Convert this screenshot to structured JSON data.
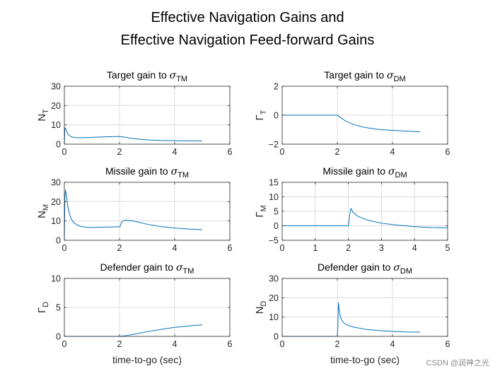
{
  "figure": {
    "title_line1": "Effective Navigation Gains and",
    "title_line2": "Effective Navigation Feed-forward Gains",
    "watermark": "CSDN @润神之光",
    "line_color": "#0072BD",
    "grid_color": "#dcdcdc"
  },
  "chart_data": [
    {
      "type": "line",
      "title_main": "Target gain to ",
      "title_sym": "σ",
      "title_sub": "TM",
      "ylabel_main": "N",
      "ylabel_sub": "T",
      "xlabel": "",
      "xlim": [
        0,
        6
      ],
      "ylim": [
        0,
        30
      ],
      "xticks": [
        0,
        2,
        4,
        6
      ],
      "yticks": [
        0,
        10,
        20,
        30
      ],
      "series": [
        {
          "name": "N_T",
          "x": [
            0.0,
            0.02,
            0.05,
            0.1,
            0.15,
            0.25,
            0.4,
            0.6,
            1.0,
            1.5,
            2.0,
            2.2,
            2.5,
            3.0,
            3.5,
            4.0,
            4.5,
            5.0
          ],
          "y": [
            0,
            8.5,
            8.0,
            6.0,
            4.8,
            3.8,
            3.4,
            3.3,
            3.5,
            3.8,
            4.0,
            3.6,
            2.9,
            2.2,
            1.9,
            1.8,
            1.7,
            1.7
          ]
        }
      ]
    },
    {
      "type": "line",
      "title_main": "Target gain to ",
      "title_sym": "σ",
      "title_sub": "DM",
      "ylabel_main": "Γ",
      "ylabel_sub": "T",
      "xlabel": "",
      "xlim": [
        0,
        6
      ],
      "ylim": [
        -2,
        2
      ],
      "xticks": [
        0,
        2,
        4,
        6
      ],
      "yticks": [
        -2,
        0,
        2
      ],
      "series": [
        {
          "name": "Gamma_T",
          "x": [
            0.0,
            1.0,
            2.0,
            2.1,
            2.3,
            2.6,
            3.0,
            3.5,
            4.0,
            4.5,
            5.0
          ],
          "y": [
            0,
            0,
            0,
            -0.15,
            -0.4,
            -0.65,
            -0.85,
            -0.98,
            -1.05,
            -1.1,
            -1.15
          ]
        }
      ]
    },
    {
      "type": "line",
      "title_main": "Missile gain to ",
      "title_sym": "σ",
      "title_sub": "TM",
      "ylabel_main": "N",
      "ylabel_sub": "M",
      "xlabel": "",
      "xlim": [
        0,
        6
      ],
      "ylim": [
        0,
        30
      ],
      "xticks": [
        0,
        2,
        4,
        6
      ],
      "yticks": [
        0,
        10,
        20,
        30
      ],
      "series": [
        {
          "name": "N_M",
          "x": [
            0.0,
            0.02,
            0.04,
            0.08,
            0.12,
            0.18,
            0.25,
            0.35,
            0.5,
            0.7,
            1.0,
            1.5,
            2.0,
            2.02,
            2.05,
            2.1,
            2.2,
            2.5,
            3.0,
            3.5,
            4.0,
            4.5,
            5.0
          ],
          "y": [
            0,
            22,
            26,
            23,
            18,
            14,
            11,
            9,
            7.6,
            6.9,
            6.6,
            6.8,
            7.0,
            7.0,
            8.5,
            9.8,
            10.4,
            10.0,
            8.3,
            7.1,
            6.3,
            5.8,
            5.5
          ]
        }
      ]
    },
    {
      "type": "line",
      "title_main": "Missile gain to ",
      "title_sym": "σ",
      "title_sub": "DM",
      "ylabel_main": "Γ",
      "ylabel_sub": "M",
      "xlabel": "",
      "xlim": [
        0,
        5
      ],
      "ylim": [
        -5,
        15
      ],
      "xticks": [
        0,
        1,
        2,
        3,
        4,
        5
      ],
      "yticks": [
        -5,
        0,
        5,
        10,
        15
      ],
      "series": [
        {
          "name": "Gamma_M",
          "x": [
            0.0,
            1.0,
            2.0,
            2.02,
            2.05,
            2.08,
            2.15,
            2.3,
            2.6,
            3.0,
            3.5,
            4.0,
            4.5,
            5.0
          ],
          "y": [
            0,
            0,
            0,
            1.5,
            4.5,
            6.0,
            4.5,
            3.2,
            1.9,
            0.9,
            0.2,
            -0.3,
            -0.6,
            -0.7
          ]
        }
      ]
    },
    {
      "type": "line",
      "title_main": "Defender gain to ",
      "title_sym": "σ",
      "title_sub": "TM",
      "ylabel_main": "Γ",
      "ylabel_sub": "D",
      "xlabel": "time-to-go (sec)",
      "xlim": [
        0,
        6
      ],
      "ylim": [
        0,
        10
      ],
      "xticks": [
        0,
        2,
        4,
        6
      ],
      "yticks": [
        0,
        5,
        10
      ],
      "series": [
        {
          "name": "Gamma_D",
          "x": [
            0.0,
            1.0,
            2.0,
            2.2,
            2.5,
            3.0,
            3.5,
            4.0,
            4.5,
            5.0
          ],
          "y": [
            0,
            0,
            0,
            0.1,
            0.35,
            0.8,
            1.2,
            1.55,
            1.8,
            2.0
          ]
        }
      ]
    },
    {
      "type": "line",
      "title_main": "Defender gain to ",
      "title_sym": "σ",
      "title_sub": "DM",
      "ylabel_main": "N",
      "ylabel_sub": "D",
      "xlabel": "time-to-go (sec)",
      "xlim": [
        0,
        6
      ],
      "ylim": [
        0,
        30
      ],
      "xticks": [
        0,
        2,
        4,
        6
      ],
      "yticks": [
        0,
        10,
        20,
        30
      ],
      "series": [
        {
          "name": "N_D",
          "x": [
            0.0,
            1.0,
            2.0,
            2.02,
            2.04,
            2.06,
            2.1,
            2.15,
            2.25,
            2.4,
            2.6,
            3.0,
            3.5,
            4.0,
            4.5,
            5.0
          ],
          "y": [
            0,
            0,
            0,
            5,
            17.5,
            15,
            11,
            8.5,
            6.8,
            5.6,
            4.8,
            3.7,
            3.0,
            2.6,
            2.3,
            2.2
          ]
        }
      ]
    }
  ]
}
